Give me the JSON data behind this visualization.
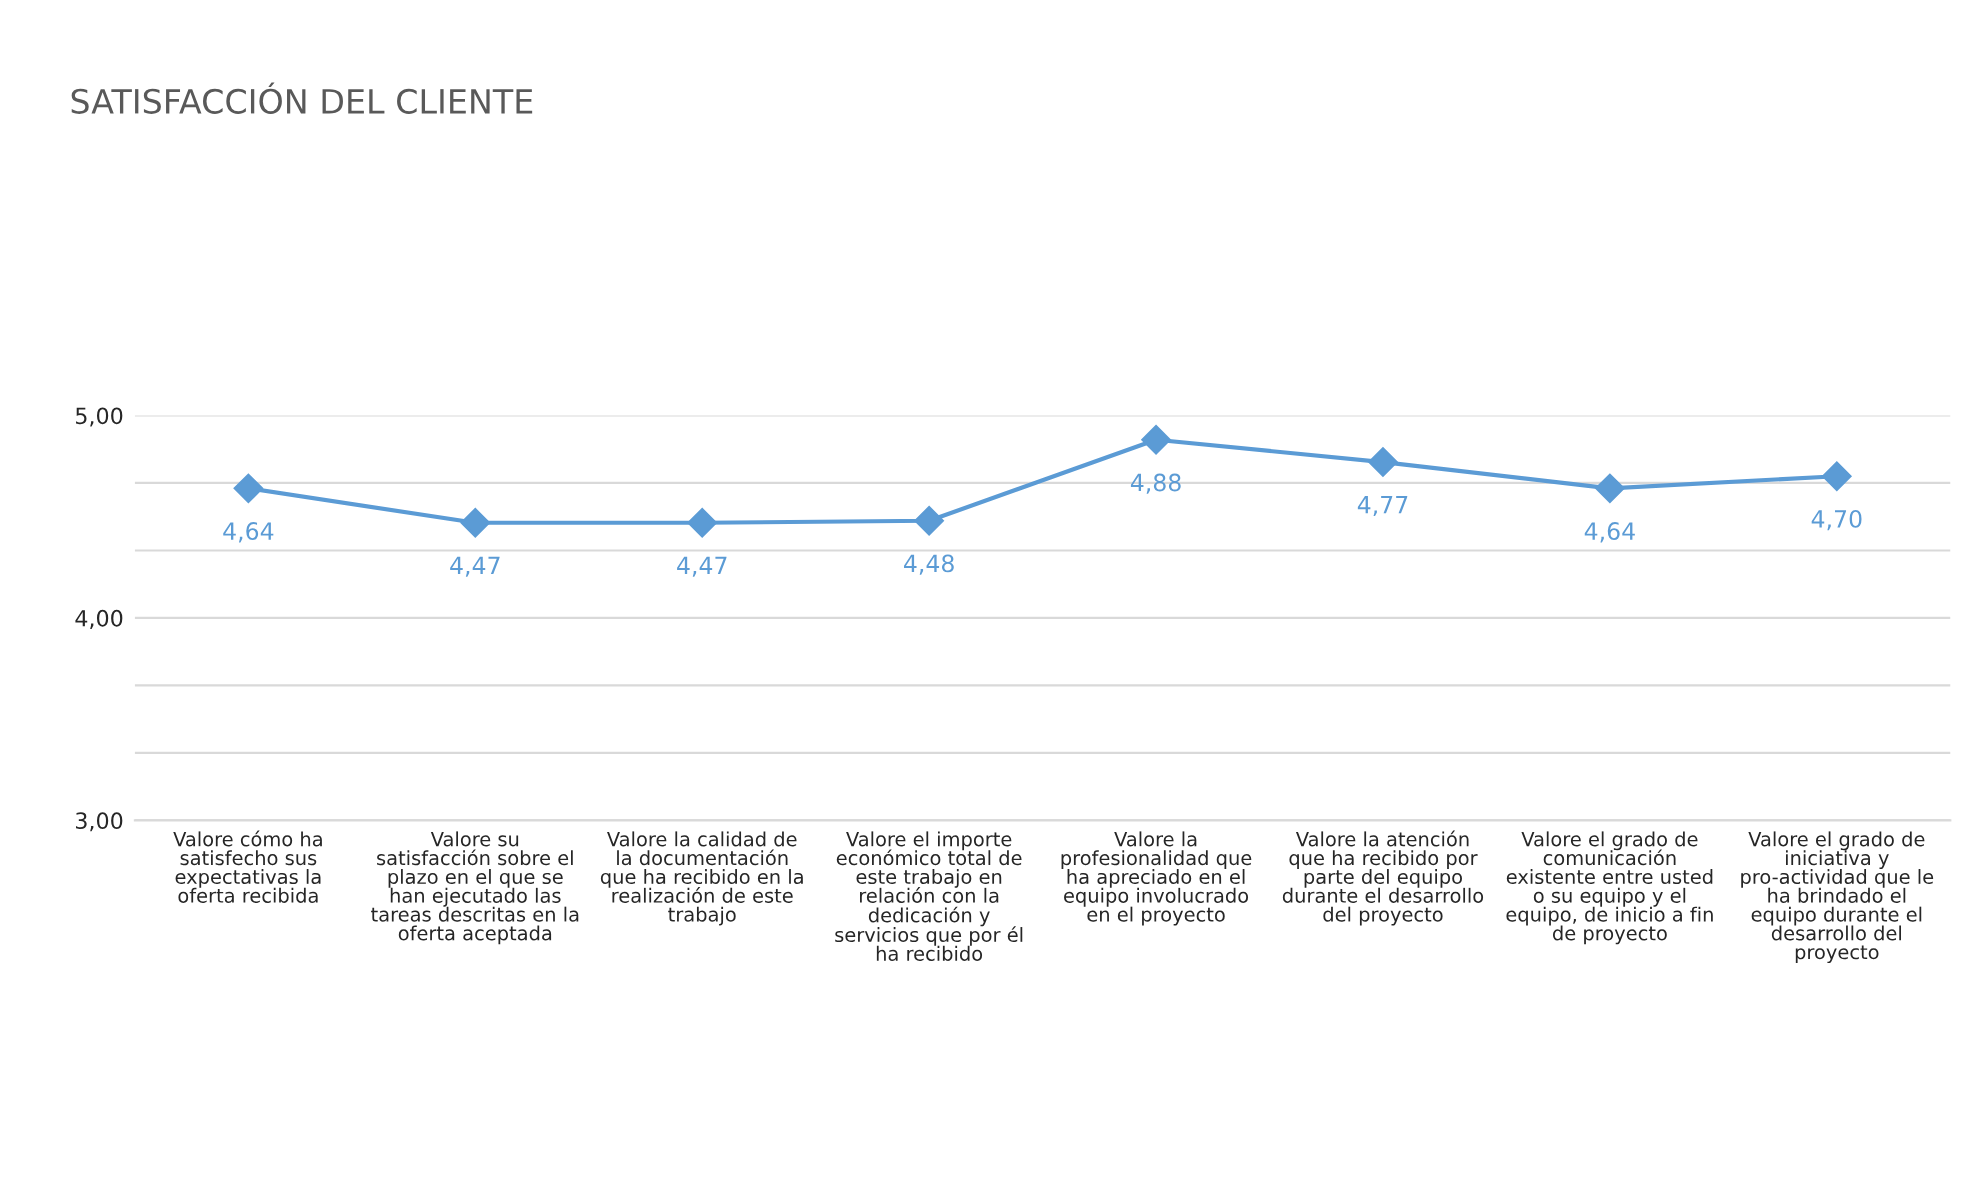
{
  "chart_data": {
    "type": "line",
    "title": "SATISFACCIÓN DEL CLIENTE",
    "categories": [
      "Valore cómo ha\nsatisfecho sus\nexpectativas la\noferta recibida",
      "Valore su\nsatisfacción sobre el\nplazo en el que se\nhan ejecutado las\ntareas descritas en la\noferta aceptada",
      "Valore la calidad de\nla documentación\nque ha recibido en la\nrealización de este\ntrabajo",
      "Valore el importe\neconómico total de\neste trabajo en\nrelación con la\ndedicación y\nservicios que por él\nha recibido",
      "Valore la\nprofesionalidad que\nha apreciado en el\nequipo involucrado\nen el proyecto",
      "Valore la atención\nque ha recibido por\nparte del equipo\ndurante el desarrollo\ndel proyecto",
      "Valore el grado de\ncomunicación\nexistente entre usted\no su equipo y el\nequipo, de inicio a fin\nde proyecto",
      "Valore el grado de\niniciativa y\npro-actividad que le\nha brindado el\nequipo durante el\ndesarrollo del\nproyecto"
    ],
    "series": [
      {
        "color": "#5b9bd5",
        "values": [
          4.64,
          4.47,
          4.47,
          4.48,
          4.88,
          4.77,
          4.64,
          4.7
        ],
        "value_labels": [
          "4,64",
          "4,47",
          "4,47",
          "4,48",
          "4,88",
          "4,77",
          "4,64",
          "4,70"
        ]
      }
    ],
    "ylim": [
      3,
      5
    ],
    "yticks": [
      {
        "value": 3,
        "label": "3,00"
      },
      {
        "value": 3.333,
        "label": null
      },
      {
        "value": 3.667,
        "label": null
      },
      {
        "value": 4,
        "label": "4,00"
      },
      {
        "value": 4.333,
        "label": null
      },
      {
        "value": 4.667,
        "label": null
      },
      {
        "value": 5,
        "label": "5,00"
      }
    ],
    "grid": "y",
    "marker": "diamond",
    "line_style": "solid",
    "legend": false
  }
}
